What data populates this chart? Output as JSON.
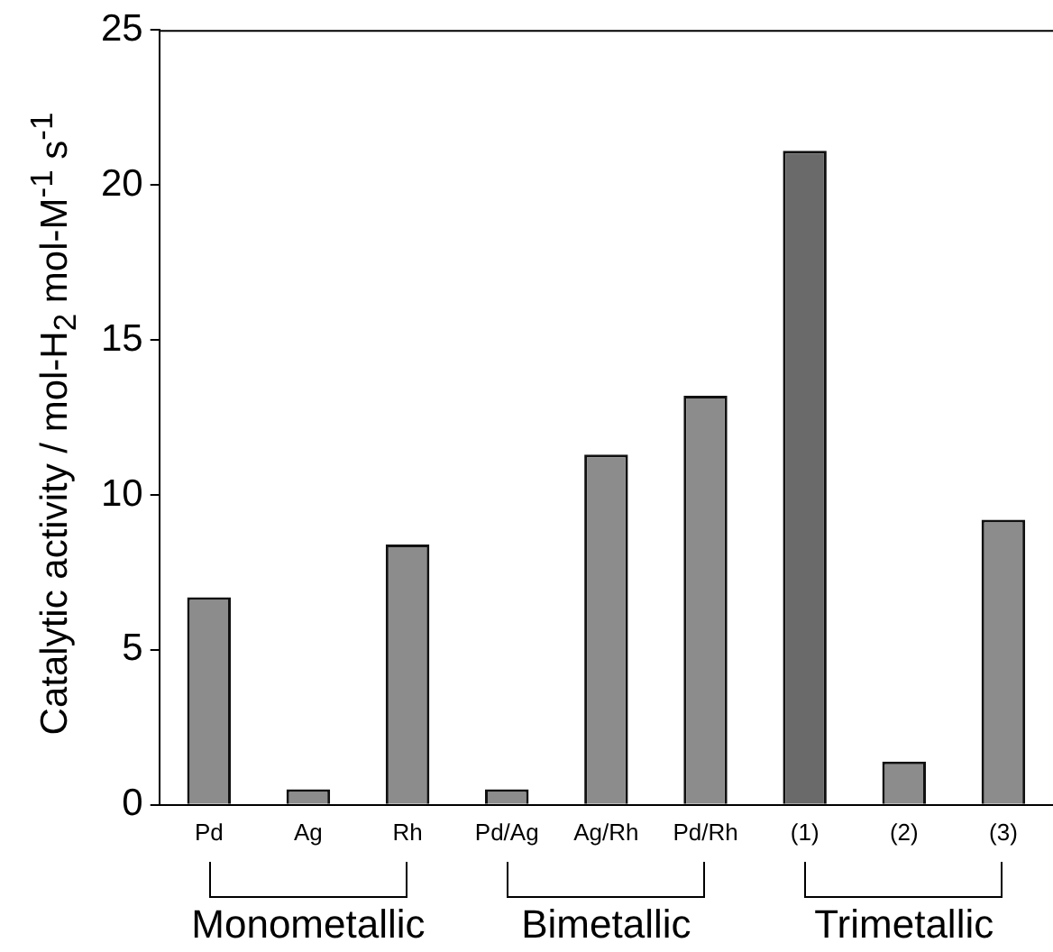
{
  "chart_data": {
    "type": "bar",
    "ylabel": "Catalytic activity / mol-H$_{2}$ mol-M$^{-1}$ s$^{-1}$",
    "categories": [
      "Pd",
      "Ag",
      "Rh",
      "Pd/Ag",
      "Ag/Rh",
      "Pd/Rh",
      "(1)",
      "(2)",
      "(3)"
    ],
    "values": [
      6.7,
      0.5,
      8.4,
      0.5,
      11.3,
      13.2,
      21.1,
      1.4,
      9.2
    ],
    "colors": [
      "#8c8c8c",
      "#8c8c8c",
      "#8c8c8c",
      "#8c8c8c",
      "#8c8c8c",
      "#8c8c8c",
      "#6a6a6a",
      "#8c8c8c",
      "#8c8c8c"
    ],
    "ylim": [
      0,
      25
    ],
    "yticks": [
      0,
      5,
      10,
      15,
      20,
      25
    ],
    "grid": false,
    "legend": false,
    "annotations": [
      "Monometallic",
      "Bimetallic",
      "Trimetallic"
    ]
  }
}
